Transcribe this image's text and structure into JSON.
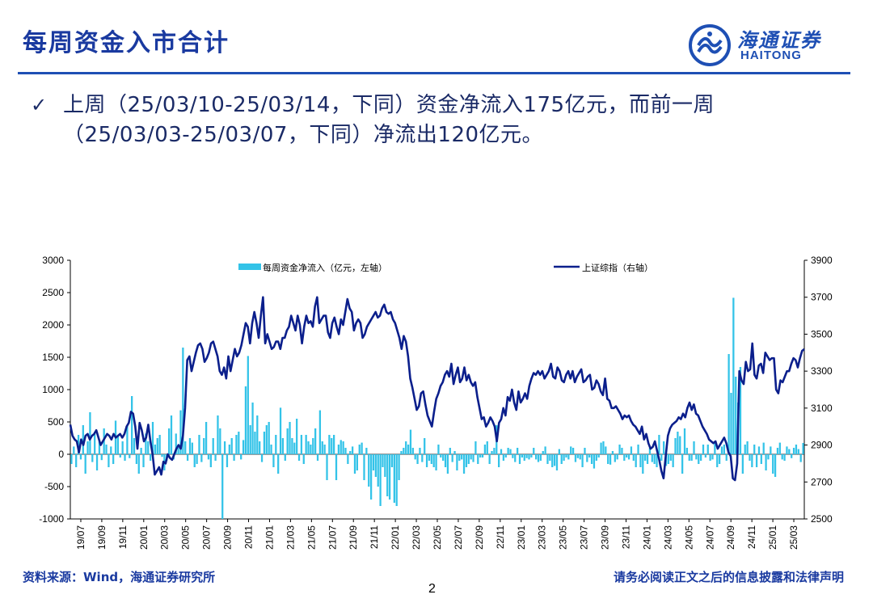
{
  "header": {
    "title": "每周资金入市合计"
  },
  "logo": {
    "cn": "海通证券",
    "en": "HAITONG",
    "mark": "haitong-logo-mark"
  },
  "bullet": {
    "icon": "check-icon",
    "line1": "上周（25/03/10-25/03/14，下同）资金净流入175亿元，而前一周",
    "line2": "（25/03/03-25/03/07，下同）净流出120亿元。"
  },
  "footer": {
    "source": "资料来源：Wind，海通证券研究所",
    "page": "2",
    "disclaimer": "请务必阅读正文之后的信息披露和法律声明"
  },
  "colors": {
    "bar": "#33c3e8",
    "line": "#0b1f8c",
    "accent": "#1e4fb4"
  },
  "chart_data": {
    "type": "bar+line",
    "grid": false,
    "legend_position": "top",
    "x_tick_labels": [
      "19/07",
      "19/09",
      "19/11",
      "20/01",
      "20/03",
      "20/05",
      "20/07",
      "20/09",
      "20/11",
      "21/01",
      "21/03",
      "21/05",
      "21/07",
      "21/09",
      "21/11",
      "22/01",
      "22/03",
      "22/05",
      "22/07",
      "22/09",
      "22/11",
      "23/01",
      "23/03",
      "23/05",
      "23/07",
      "23/09",
      "23/11",
      "24/01",
      "24/03",
      "24/05",
      "24/07",
      "24/09",
      "24/11",
      "25/01",
      "25/03"
    ],
    "y_left": {
      "ticks": [
        "3000",
        "2500",
        "2000",
        "1500",
        "1000",
        "500",
        "0",
        "-500",
        "-1000"
      ],
      "range": [
        -1000,
        3000
      ]
    },
    "y_right": {
      "ticks": [
        "3900",
        "3700",
        "3500",
        "3300",
        "3100",
        "2900",
        "2700",
        "2500"
      ],
      "range": [
        2500,
        3900
      ]
    },
    "series": [
      {
        "name": "每周资金净流入（亿元，左轴）",
        "kind": "bar",
        "axis": "left",
        "values": [
          -150,
          120,
          -200,
          300,
          -80,
          450,
          -300,
          200,
          650,
          -120,
          350,
          -250,
          200,
          -90,
          400,
          150,
          -200,
          120,
          -150,
          520,
          300,
          -50,
          200,
          -100,
          450,
          -60,
          900,
          250,
          -150,
          -300,
          100,
          -200,
          320,
          200,
          -100,
          500,
          150,
          250,
          300,
          -40,
          -250,
          -100,
          400,
          600,
          -80,
          320,
          100,
          680,
          1650,
          200,
          -100,
          250,
          180,
          -200,
          -150,
          300,
          -120,
          250,
          500,
          -80,
          -200,
          250,
          -100,
          600,
          400,
          -1000,
          200,
          -200,
          150,
          250,
          -100,
          300,
          350,
          -80,
          220,
          1050,
          1520,
          450,
          800,
          350,
          600,
          200,
          -120,
          350,
          450,
          500,
          150,
          -200,
          300,
          -300,
          720,
          250,
          -100,
          400,
          500,
          250,
          180,
          550,
          -100,
          300,
          -150,
          300,
          200,
          150,
          250,
          400,
          -100,
          680,
          200,
          150,
          -400,
          300,
          250,
          300,
          -400,
          150,
          220,
          200,
          100,
          -150,
          50,
          120,
          -300,
          -250,
          150,
          180,
          -400,
          100,
          -500,
          -700,
          -250,
          -350,
          -500,
          -800,
          -200,
          -350,
          -650,
          -700,
          -200,
          -750,
          -800,
          -400,
          50,
          100,
          200,
          150,
          380,
          100,
          -80,
          -150,
          100,
          -120,
          250,
          -200,
          -100,
          -150,
          -200,
          -250,
          150,
          -50,
          -100,
          -200,
          -300,
          100,
          -120,
          50,
          -250,
          -100,
          -80,
          -300,
          -200,
          -150,
          -80,
          -120,
          200,
          -150,
          -50,
          -50,
          150,
          200,
          -150,
          50,
          100,
          450,
          -200,
          80,
          -100,
          -50,
          100,
          80,
          -60,
          -120,
          100,
          -150,
          -50,
          -100,
          -60,
          -80,
          -50,
          100,
          -80,
          -120,
          -100,
          50,
          120,
          -150,
          -100,
          -200,
          -180,
          -250,
          80,
          -150,
          -100,
          -50,
          -80,
          120,
          100,
          -120,
          -60,
          -80,
          -200,
          100,
          -120,
          -50,
          -150,
          -220,
          -100,
          -50,
          180,
          200,
          120,
          -150,
          -160,
          50,
          -120,
          -80,
          150,
          100,
          -100,
          -50,
          -80,
          120,
          -100,
          -200,
          150,
          -200,
          -300,
          -100,
          -150,
          100,
          -120,
          -150,
          -200,
          300,
          -100,
          200,
          -180,
          -150,
          -100,
          -200,
          250,
          350,
          280,
          -300,
          400,
          100,
          -100,
          -100,
          200,
          -80,
          -150,
          -100,
          150,
          -50,
          150,
          -100,
          -80,
          200,
          -200,
          -150,
          120,
          150,
          -100,
          1550,
          950,
          2420,
          1200,
          800,
          1350,
          -300,
          150,
          200,
          -100,
          -200,
          150,
          -200,
          120,
          -150,
          180,
          -250,
          -80,
          120,
          -300,
          -350,
          100,
          180,
          -80,
          -100,
          120,
          80,
          -60,
          100,
          150,
          80,
          -120,
          175
        ]
      },
      {
        "name": "上证综指（右轴）",
        "kind": "line",
        "axis": "right",
        "values": [
          3010,
          2950,
          2930,
          2920,
          2860,
          2930,
          2900,
          2950,
          2960,
          2930,
          2950,
          2960,
          2980,
          2940,
          2900,
          2920,
          2940,
          2960,
          2950,
          2930,
          2960,
          2940,
          2950,
          2960,
          2940,
          2960,
          3000,
          3020,
          3080,
          3070,
          3000,
          2880,
          3020,
          2980,
          2920,
          2940,
          3010,
          2920,
          2850,
          2740,
          2760,
          2780,
          2740,
          2810,
          2800,
          2850,
          2830,
          2820,
          2850,
          2880,
          2900,
          2880,
          2950,
          3100,
          3360,
          3380,
          3300,
          3350,
          3400,
          3440,
          3450,
          3420,
          3350,
          3370,
          3400,
          3450,
          3460,
          3420,
          3380,
          3300,
          3280,
          3320,
          3260,
          3380,
          3300,
          3360,
          3420,
          3380,
          3400,
          3440,
          3500,
          3560,
          3540,
          3450,
          3560,
          3620,
          3560,
          3480,
          3600,
          3700,
          3450,
          3500,
          3460,
          3420,
          3430,
          3460,
          3460,
          3420,
          3480,
          3480,
          3520,
          3540,
          3600,
          3560,
          3520,
          3600,
          3550,
          3450,
          3540,
          3600,
          3560,
          3570,
          3540,
          3650,
          3700,
          3560,
          3580,
          3600,
          3600,
          3510,
          3480,
          3560,
          3590,
          3540,
          3500,
          3580,
          3550,
          3620,
          3690,
          3640,
          3620,
          3520,
          3560,
          3580,
          3560,
          3480,
          3500,
          3540,
          3560,
          3580,
          3600,
          3620,
          3590,
          3600,
          3640,
          3660,
          3620,
          3610,
          3620,
          3580,
          3560,
          3520,
          3480,
          3420,
          3490,
          3460,
          3380,
          3260,
          3210,
          3150,
          3090,
          3110,
          3180,
          3190,
          3120,
          3060,
          3030,
          3000,
          3080,
          3150,
          3180,
          3220,
          3240,
          3280,
          3300,
          3270,
          3340,
          3230,
          3280,
          3320,
          3240,
          3260,
          3320,
          3250,
          3280,
          3240,
          3220,
          3240,
          3160,
          3100,
          3040,
          3050,
          3000,
          3020,
          3050,
          3030,
          3000,
          2920,
          3020,
          3040,
          3100,
          3060,
          3160,
          3140,
          3200,
          3130,
          3090,
          3190,
          3130,
          3150,
          3180,
          3150,
          3220,
          3260,
          3290,
          3280,
          3300,
          3280,
          3300,
          3260,
          3280,
          3300,
          3340,
          3270,
          3260,
          3320,
          3300,
          3250,
          3240,
          3280,
          3300,
          3260,
          3300,
          3240,
          3270,
          3290,
          3310,
          3240,
          3250,
          3270,
          3280,
          3200,
          3210,
          3250,
          3230,
          3190,
          3170,
          3260,
          3150,
          3140,
          3100,
          3100,
          3110,
          3090,
          3070,
          3040,
          3060,
          3050,
          3060,
          3030,
          3010,
          3000,
          2980,
          2960,
          3000,
          2930,
          2960,
          2910,
          2880,
          2890,
          2920,
          2870,
          2820,
          2760,
          2720,
          2840,
          2950,
          2990,
          3010,
          3020,
          3030,
          3050,
          3040,
          3070,
          3050,
          3100,
          3130,
          3090,
          3120,
          3070,
          3060,
          3030,
          3000,
          2980,
          2960,
          2930,
          2920,
          2910,
          2920,
          2880,
          2900,
          2920,
          2940,
          2910,
          2860,
          2840,
          2720,
          2710,
          2800,
          3300,
          3250,
          3230,
          3350,
          3300,
          3310,
          3450,
          3280,
          3260,
          3330,
          3340,
          3290,
          3400,
          3380,
          3360,
          3370,
          3370,
          3200,
          3180,
          3250,
          3240,
          3270,
          3300,
          3300,
          3340,
          3370,
          3360,
          3320,
          3370,
          3410,
          3419
        ]
      }
    ]
  }
}
